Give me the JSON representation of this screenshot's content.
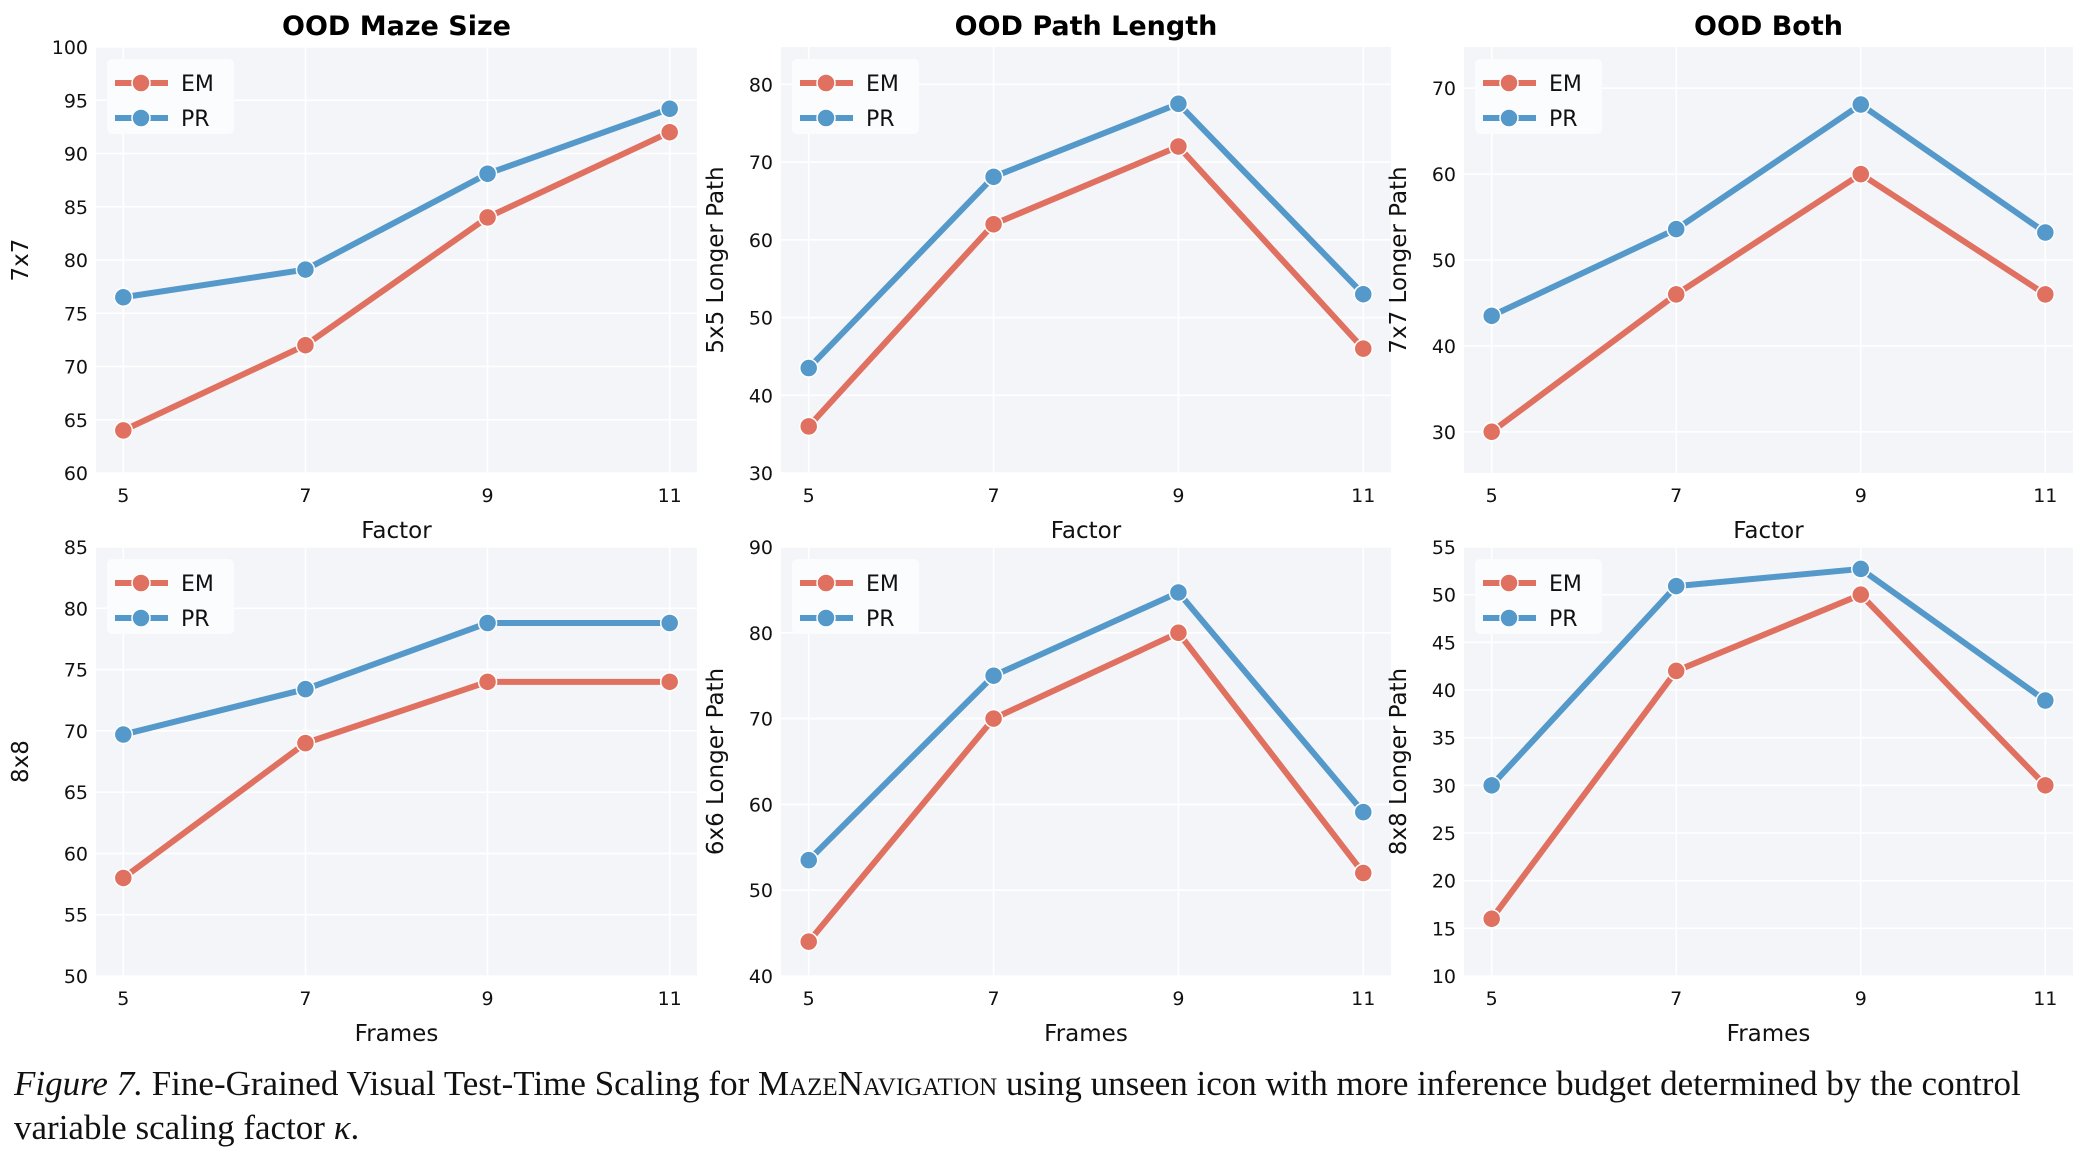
{
  "colors": {
    "EM": "#e0705f",
    "PR": "#5499c9",
    "panel_bg": "#f3f5f9",
    "grid": "#ffffff"
  },
  "chart_data": [
    {
      "type": "line",
      "title": "OOD Maze Size",
      "xlabel": "Factor",
      "ylabel": "7x7",
      "x": [
        5,
        7,
        9,
        11
      ],
      "xticks": [
        "5",
        "7",
        "9",
        "11"
      ],
      "ylim": [
        60,
        100
      ],
      "yticks": [
        60,
        65,
        70,
        75,
        80,
        85,
        90,
        95,
        100
      ],
      "grid": true,
      "legend": "top-left",
      "series": [
        {
          "name": "EM",
          "values": [
            64,
            72,
            84,
            92
          ]
        },
        {
          "name": "PR",
          "values": [
            76.5,
            79.1,
            88.1,
            94.2
          ]
        }
      ]
    },
    {
      "type": "line",
      "title": "OOD Path Length",
      "xlabel": "Factor",
      "ylabel": "5x5 Longer Path",
      "x": [
        5,
        7,
        9,
        11
      ],
      "xticks": [
        "5",
        "7",
        "9",
        "11"
      ],
      "ylim": [
        30,
        84.8
      ],
      "yticks": [
        30,
        40,
        50,
        60,
        70,
        80
      ],
      "grid": true,
      "legend": "top-left",
      "series": [
        {
          "name": "EM",
          "values": [
            36,
            62,
            72,
            46
          ]
        },
        {
          "name": "PR",
          "values": [
            43.5,
            68.1,
            77.5,
            53
          ]
        }
      ]
    },
    {
      "type": "line",
      "title": "OOD Both",
      "xlabel": "Factor",
      "ylabel": "7x7 Longer Path",
      "x": [
        5,
        7,
        9,
        11
      ],
      "xticks": [
        "5",
        "7",
        "9",
        "11"
      ],
      "ylim": [
        25.2,
        74.8
      ],
      "yticks": [
        30,
        40,
        50,
        60,
        70
      ],
      "grid": true,
      "legend": "top-left",
      "series": [
        {
          "name": "EM",
          "values": [
            30,
            46,
            60,
            46
          ]
        },
        {
          "name": "PR",
          "values": [
            43.5,
            53.6,
            68.1,
            53.2
          ]
        }
      ]
    },
    {
      "type": "line",
      "title": "",
      "xlabel": "Frames",
      "ylabel": "8x8",
      "x": [
        5,
        7,
        9,
        11
      ],
      "xticks": [
        "5",
        "7",
        "9",
        "11"
      ],
      "ylim": [
        50,
        85
      ],
      "yticks": [
        50,
        55,
        60,
        65,
        70,
        75,
        80,
        85
      ],
      "grid": true,
      "legend": "top-left",
      "series": [
        {
          "name": "EM",
          "values": [
            58,
            69,
            74,
            74
          ]
        },
        {
          "name": "PR",
          "values": [
            69.7,
            73.4,
            78.8,
            78.8
          ]
        }
      ]
    },
    {
      "type": "line",
      "title": "",
      "xlabel": "Frames",
      "ylabel": "6x6 Longer Path",
      "x": [
        5,
        7,
        9,
        11
      ],
      "xticks": [
        "5",
        "7",
        "9",
        "11"
      ],
      "ylim": [
        40,
        90
      ],
      "yticks": [
        40,
        50,
        60,
        70,
        80,
        90
      ],
      "grid": true,
      "legend": "top-left",
      "series": [
        {
          "name": "EM",
          "values": [
            44,
            70,
            80,
            52
          ]
        },
        {
          "name": "PR",
          "values": [
            53.5,
            75,
            84.7,
            59.1
          ]
        }
      ]
    },
    {
      "type": "line",
      "title": "",
      "xlabel": "Frames",
      "ylabel": "8x8 Longer Path",
      "x": [
        5,
        7,
        9,
        11
      ],
      "xticks": [
        "5",
        "7",
        "9",
        "11"
      ],
      "ylim": [
        10,
        55
      ],
      "yticks": [
        10,
        15,
        20,
        25,
        30,
        35,
        40,
        45,
        50,
        55
      ],
      "grid": true,
      "legend": "top-left",
      "series": [
        {
          "name": "EM",
          "values": [
            16,
            42,
            50,
            30
          ]
        },
        {
          "name": "PR",
          "values": [
            30,
            50.9,
            52.7,
            38.9
          ]
        }
      ]
    }
  ],
  "caption": {
    "label": "Figure 7.",
    "text_before": " Fine-Grained Visual Test-Time Scaling for ",
    "smallcaps": "MazeNavigation",
    "text_after": " using unseen icon with more inference budget determined by the control variable scaling factor ",
    "symbol": "κ",
    "end": "."
  }
}
